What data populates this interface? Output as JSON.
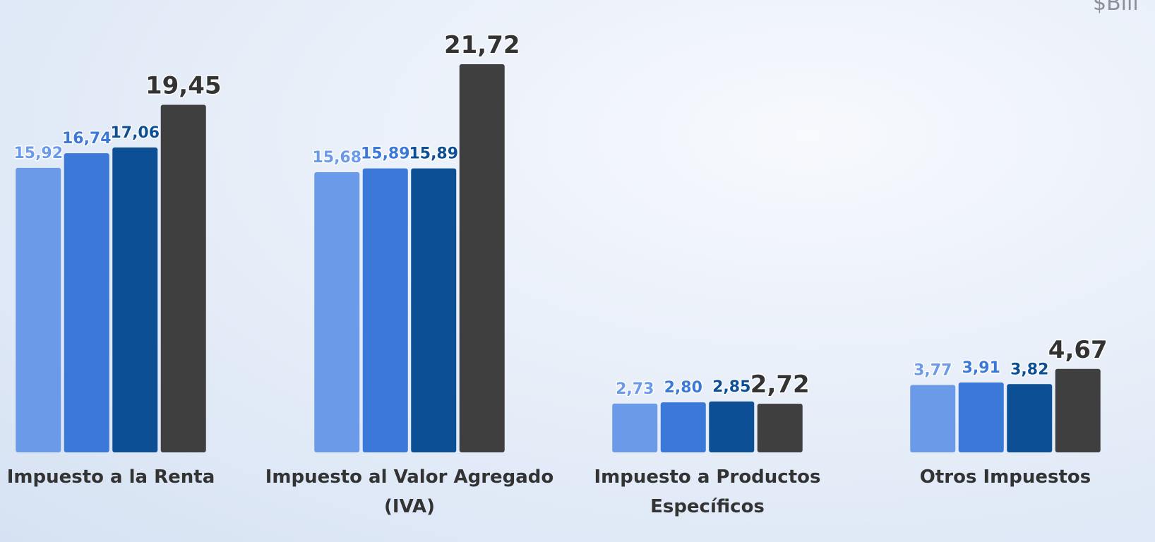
{
  "chart_data": {
    "type": "bar",
    "unit_label": "$Bill",
    "categories": [
      [
        "Impuesto a la Renta"
      ],
      [
        "Impuesto al Valor Agregado",
        "(IVA)"
      ],
      [
        "Impuesto a Productos",
        "Específicos"
      ],
      [
        "Otros Impuestos"
      ]
    ],
    "series": [
      {
        "color": "#6b9be8",
        "values": [
          15.92,
          15.68,
          2.73,
          3.77
        ],
        "value_labels": [
          "15,92",
          "15,68",
          "2,73",
          "3,77"
        ]
      },
      {
        "color": "#3b78d8",
        "values": [
          16.74,
          15.89,
          2.8,
          3.91
        ],
        "value_labels": [
          "16,74",
          "15,89",
          "2,80",
          "3,91"
        ]
      },
      {
        "color": "#0d4f94",
        "values": [
          17.06,
          15.89,
          2.85,
          3.82
        ],
        "value_labels": [
          "17,06",
          "15,89",
          "2,85",
          "3,82"
        ]
      },
      {
        "color": "#3f3f3f",
        "values": [
          19.45,
          21.72,
          2.72,
          4.67
        ],
        "value_labels": [
          "19,45",
          "21,72",
          "2,72",
          "4,67"
        ]
      }
    ],
    "ylim": [
      0,
      25
    ]
  }
}
